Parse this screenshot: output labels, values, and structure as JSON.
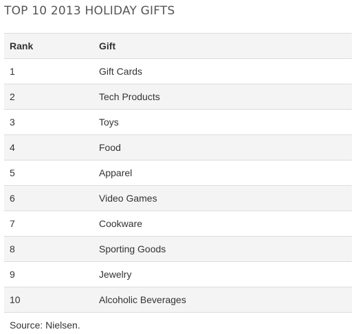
{
  "chart_data": {
    "type": "table",
    "title": "TOP 10 2013 HOLIDAY GIFTS",
    "columns": [
      "Rank",
      "Gift"
    ],
    "rows": [
      [
        "1",
        "Gift Cards"
      ],
      [
        "2",
        "Tech Products"
      ],
      [
        "3",
        "Toys"
      ],
      [
        "4",
        "Food"
      ],
      [
        "5",
        "Apparel"
      ],
      [
        "6",
        "Video Games"
      ],
      [
        "7",
        "Cookware"
      ],
      [
        "8",
        "Sporting Goods"
      ],
      [
        "9",
        "Jewelry"
      ],
      [
        "10",
        "Alcoholic Beverages"
      ]
    ],
    "source": "Source: Nielsen."
  },
  "colors": {
    "header_bg": "#f4f4f4",
    "stripe_bg": "#f4f4f4",
    "rule": "#dcdcdc",
    "text": "#333333"
  }
}
